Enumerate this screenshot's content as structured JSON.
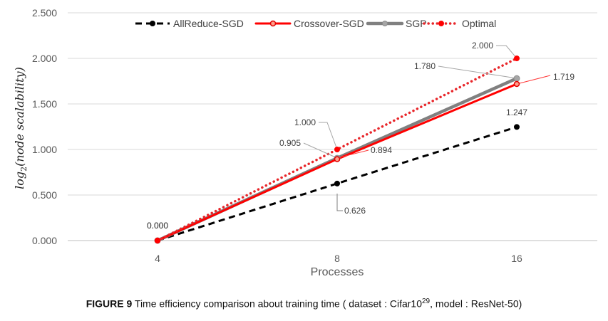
{
  "chart_data": {
    "type": "line",
    "categories": [
      "4",
      "8",
      "16"
    ],
    "xlabel": "Processes",
    "ylabel": "log2(node scalability)",
    "ylim": [
      0,
      2.5
    ],
    "yticks": [
      "0.000",
      "0.500",
      "1.000",
      "1.500",
      "2.000",
      "2.500"
    ],
    "grid": true,
    "legend_position": "top",
    "series": [
      {
        "name": "AllReduce-SGD",
        "values": [
          0,
          0.626,
          1.247
        ],
        "labels": [
          "0.000",
          "0.626",
          "1.247"
        ],
        "color": "#000000",
        "style": "dashed"
      },
      {
        "name": "Crossover-SGD",
        "values": [
          0,
          0.894,
          1.719
        ],
        "labels": [
          "0.000",
          "0.894",
          "1.719"
        ],
        "color": "#ff0000",
        "style": "solid"
      },
      {
        "name": "SGP",
        "values": [
          0,
          0.905,
          1.78
        ],
        "labels": [
          "0.000",
          "0.905",
          "1.780"
        ],
        "color": "#808080",
        "style": "solid"
      },
      {
        "name": "Optimal",
        "values": [
          0,
          1.0,
          2.0
        ],
        "labels": [
          "0.000",
          "1.000",
          "2.000"
        ],
        "color": "#e8262a",
        "style": "dotted"
      }
    ]
  },
  "caption": {
    "label": "FIGURE 9",
    "text_before": " Time efficiency comparison about training time ( dataset : Cifar10",
    "superscript": "29",
    "text_after": ", model : ResNet-50)"
  }
}
